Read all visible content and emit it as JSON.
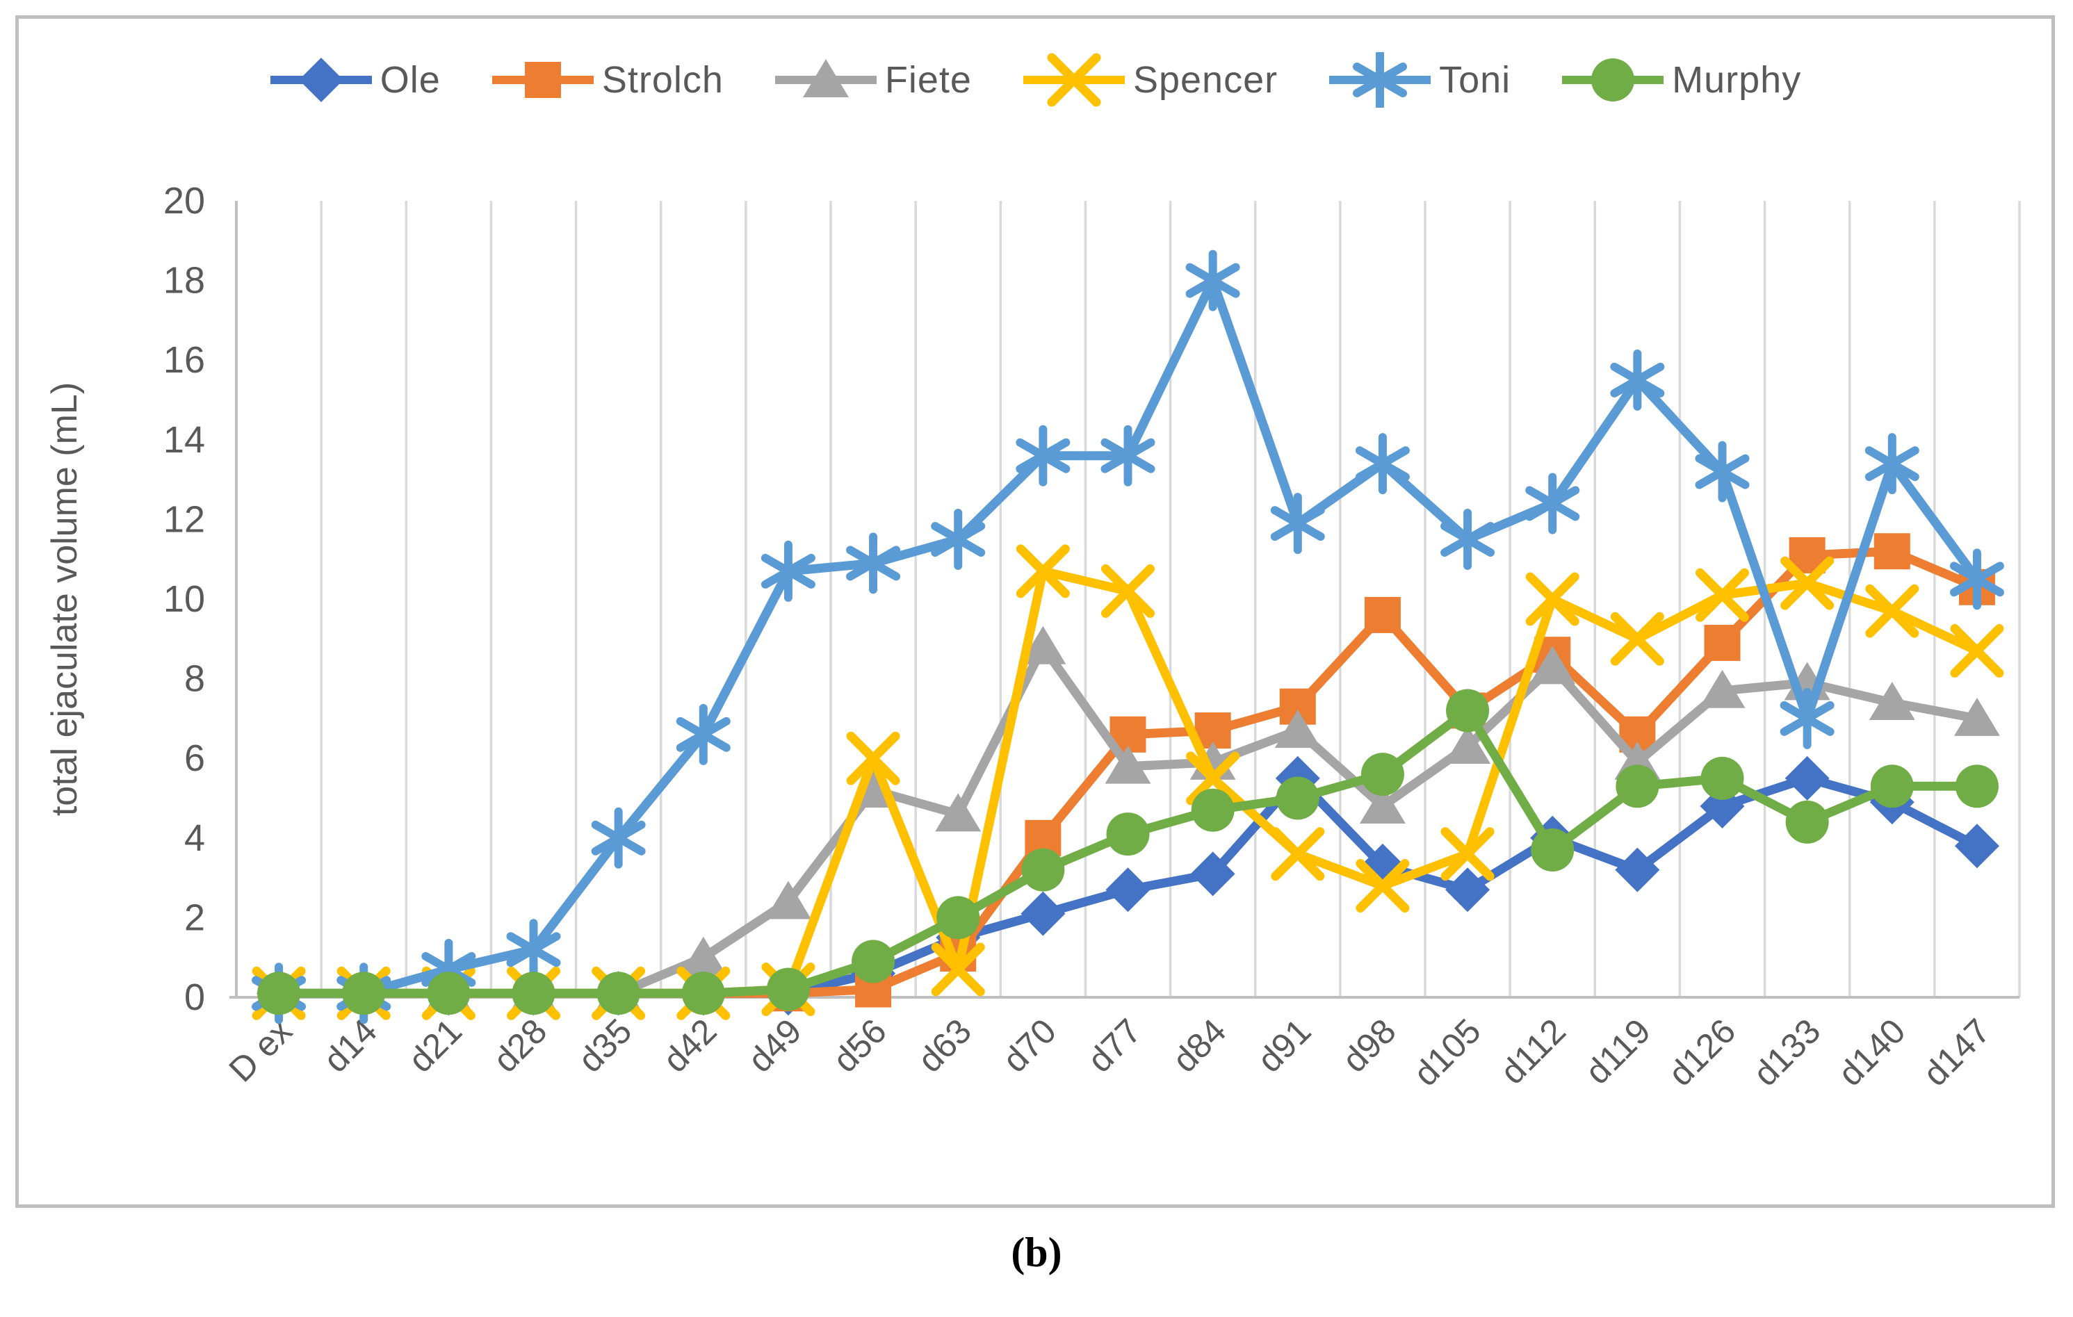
{
  "figure": {
    "caption": "(b)"
  },
  "axes": {
    "y_title": "total ejaculate volume (mL)",
    "y_min": 0,
    "y_max": 20,
    "y_step": 2
  },
  "colors": {
    "grid": "#d9d9d9",
    "axis": "#bfbfbf",
    "tick_text": "#595959",
    "legend_text": "#595959",
    "border": "#bfbfbf"
  },
  "chart_data": {
    "type": "line",
    "title": "",
    "xlabel": "",
    "ylabel": "total ejaculate volume (mL)",
    "ylim": [
      0,
      20
    ],
    "y_tick_step": 2,
    "grid": "vertical-only",
    "legend_position": "top",
    "categories": [
      "D ex",
      "d14",
      "d21",
      "d28",
      "d35",
      "d42",
      "d49",
      "d56",
      "d63",
      "d70",
      "d77",
      "d84",
      "d91",
      "d98",
      "d105",
      "d112",
      "d119",
      "d126",
      "d133",
      "d140",
      "d147"
    ],
    "series": [
      {
        "name": "Ole",
        "marker": "diamond",
        "color": "#4472C4",
        "values": [
          0.1,
          0.1,
          0.1,
          0.1,
          0.1,
          0.1,
          0.1,
          0.6,
          1.5,
          2.1,
          2.7,
          3.1,
          5.5,
          3.3,
          2.7,
          4.0,
          3.2,
          4.8,
          5.5,
          4.9,
          3.8
        ]
      },
      {
        "name": "Strolch",
        "marker": "square",
        "color": "#ED7D31",
        "values": [
          0.1,
          0.1,
          0.1,
          0.1,
          0.1,
          0.1,
          0.1,
          0.2,
          1.1,
          4.0,
          6.6,
          6.7,
          7.3,
          9.6,
          7.2,
          8.6,
          6.6,
          8.9,
          11.1,
          11.2,
          10.3
        ]
      },
      {
        "name": "Fiete",
        "marker": "triangle",
        "color": "#A5A5A5",
        "values": [
          0.1,
          0.1,
          0.1,
          0.1,
          0.1,
          1.0,
          2.4,
          5.2,
          4.6,
          8.8,
          5.8,
          5.9,
          6.7,
          4.8,
          6.3,
          8.3,
          5.9,
          7.7,
          7.9,
          7.4,
          7.0
        ]
      },
      {
        "name": "Spencer",
        "marker": "x",
        "color": "#FFC000",
        "values": [
          0.1,
          0.1,
          0.1,
          0.1,
          0.1,
          0.1,
          0.2,
          6.0,
          0.7,
          10.7,
          10.2,
          5.5,
          3.6,
          2.8,
          3.6,
          10.0,
          9.0,
          10.1,
          10.4,
          9.7,
          8.7
        ]
      },
      {
        "name": "Toni",
        "marker": "asterisk",
        "color": "#5B9BD5",
        "values": [
          0.1,
          0.1,
          0.7,
          1.2,
          4.0,
          6.6,
          10.7,
          10.9,
          11.5,
          13.6,
          13.6,
          18.0,
          11.9,
          13.4,
          11.5,
          12.4,
          15.5,
          13.2,
          7.0,
          13.4,
          10.5
        ]
      },
      {
        "name": "Murphy",
        "marker": "circle",
        "color": "#70AD47",
        "values": [
          0.1,
          0.1,
          0.1,
          0.1,
          0.1,
          0.1,
          0.2,
          0.9,
          2.0,
          3.2,
          4.1,
          4.7,
          5.0,
          5.6,
          7.2,
          3.7,
          5.3,
          5.5,
          4.4,
          5.3,
          5.3
        ]
      }
    ]
  }
}
